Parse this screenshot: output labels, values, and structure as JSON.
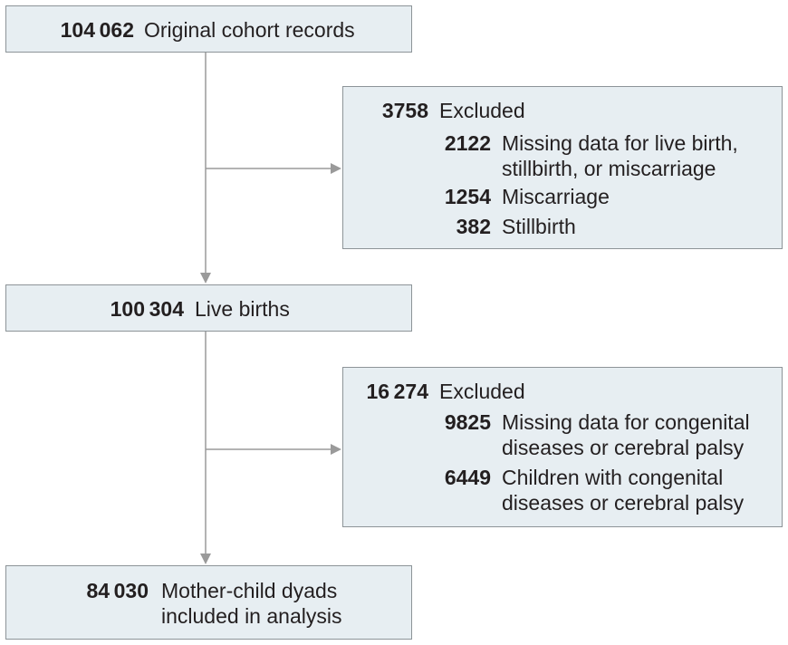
{
  "original_cohort": {
    "count": "104 062",
    "label": "Original cohort records"
  },
  "excluded_pregnancy": {
    "count": "3758",
    "label": "Excluded",
    "items": [
      {
        "count": "2122",
        "label_lines": [
          "Missing data for live birth,",
          "stillbirth, or miscarriage"
        ]
      },
      {
        "count": "1254",
        "label_lines": [
          "Miscarriage"
        ]
      },
      {
        "count": "382",
        "label_lines": [
          "Stillbirth"
        ]
      }
    ]
  },
  "live_births": {
    "count": "100 304",
    "label": "Live births"
  },
  "excluded_child": {
    "count": "16 274",
    "label": "Excluded",
    "items": [
      {
        "count": "9825",
        "label_lines": [
          "Missing data for congenital",
          "diseases or cerebral palsy"
        ]
      },
      {
        "count": "6449",
        "label_lines": [
          "Children with congenital",
          "diseases or cerebral palsy"
        ]
      }
    ]
  },
  "analysis": {
    "count": "84 030",
    "label_lines": [
      "Mother-child dyads",
      "included in analysis"
    ]
  },
  "colors": {
    "box_fill": "#e7eef2",
    "box_border": "#8d9498",
    "connector": "#9a9a9a",
    "text": "#231f20"
  }
}
